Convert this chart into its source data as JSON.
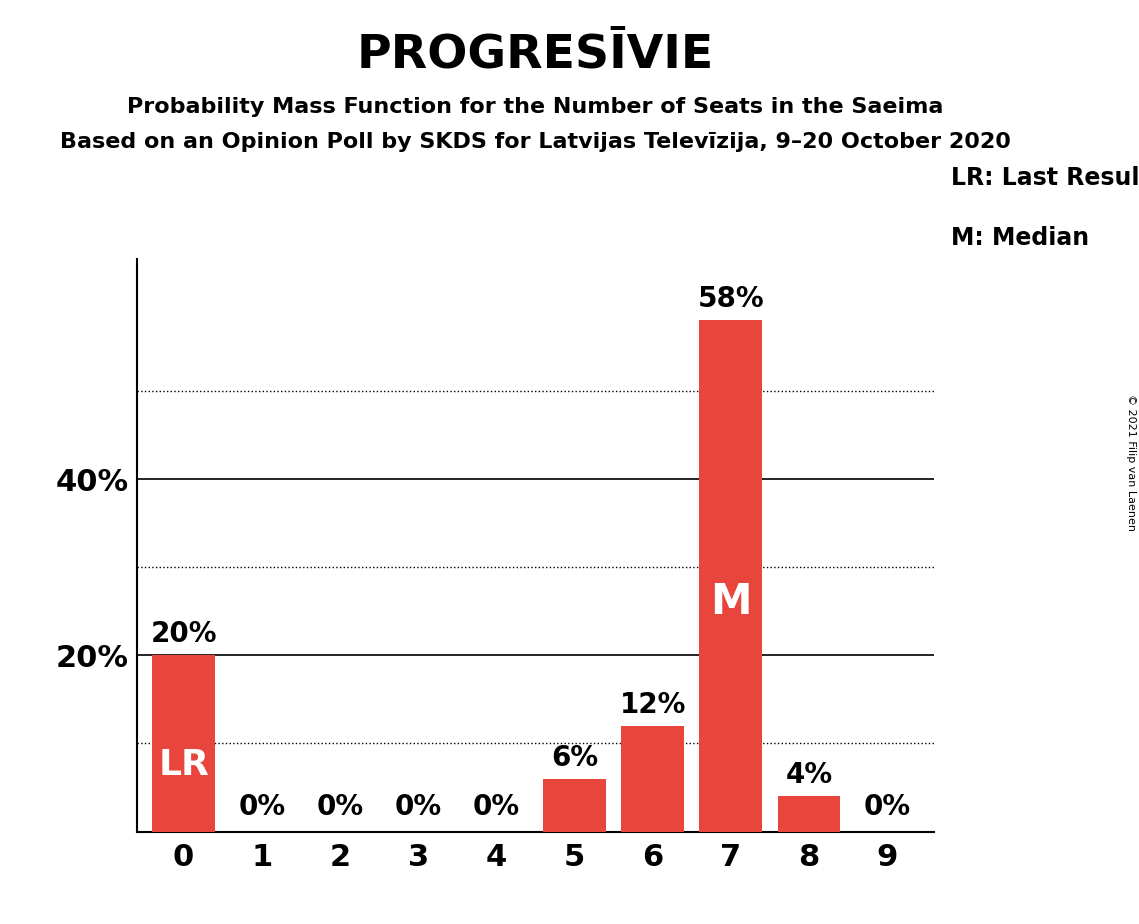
{
  "title": "PROGRESĪVIE",
  "subtitle1": "Probability Mass Function for the Number of Seats in the Saeima",
  "subtitle2": "Based on an Opinion Poll by SKDS for Latvijas Televīzija, 9–20 October 2020",
  "copyright": "© 2021 Filip van Laenen",
  "categories": [
    0,
    1,
    2,
    3,
    4,
    5,
    6,
    7,
    8,
    9
  ],
  "values": [
    20,
    0,
    0,
    0,
    0,
    6,
    12,
    58,
    4,
    0
  ],
  "bar_color": "#E8453C",
  "lr_bar": 0,
  "median_bar": 7,
  "legend_lr": "LR: Last Result",
  "legend_m": "M: Median",
  "yticks_solid": [
    20,
    40
  ],
  "yticks_dotted": [
    10,
    30,
    50
  ],
  "ylim": [
    0,
    65
  ],
  "background_color": "#FFFFFF",
  "title_fontsize": 34,
  "subtitle_fontsize": 16,
  "axis_tick_fontsize": 22,
  "bar_label_fontsize": 20,
  "legend_fontsize": 17,
  "lr_label_fontsize": 26,
  "m_label_fontsize": 30,
  "copyright_fontsize": 8
}
